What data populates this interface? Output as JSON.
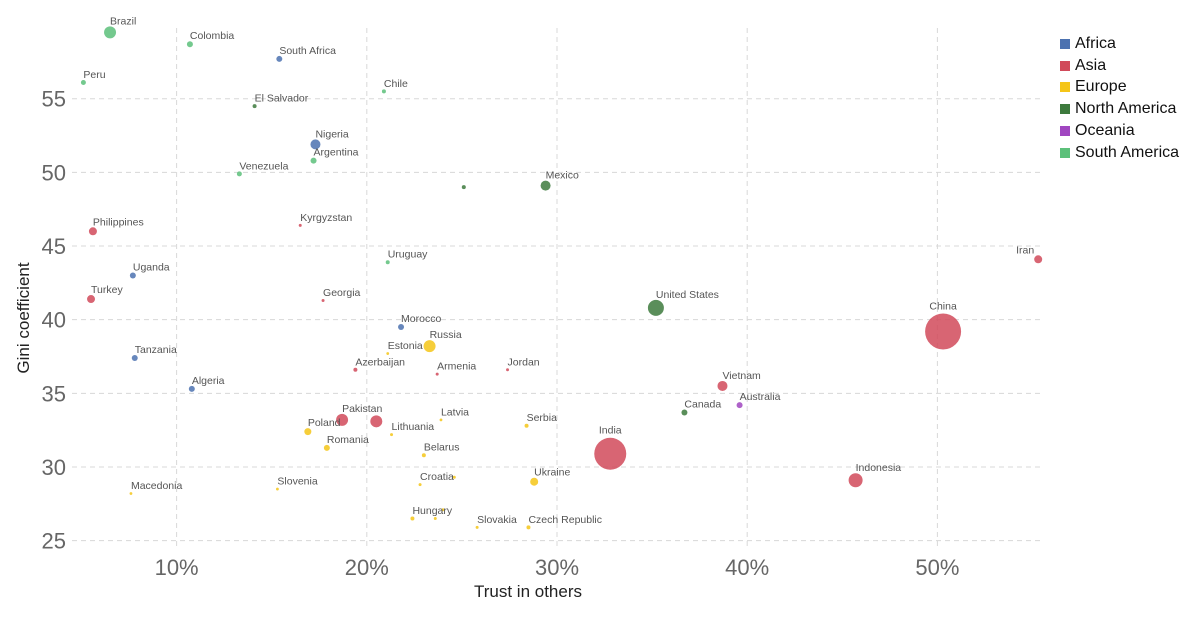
{
  "chart_data": {
    "type": "scatter",
    "title": "",
    "xlabel": "Trust in others",
    "ylabel": "Gini coefficient",
    "xlim": [
      4.5,
      55.5
    ],
    "ylim": [
      24.5,
      59.8
    ],
    "x_ticks": [
      10,
      20,
      30,
      40,
      50
    ],
    "x_tick_labels": [
      "10%",
      "20%",
      "30%",
      "40%",
      "50%"
    ],
    "y_ticks": [
      25,
      30,
      35,
      40,
      45,
      50,
      55
    ],
    "y_tick_labels": [
      "25",
      "30",
      "35",
      "40",
      "45",
      "50",
      "55"
    ],
    "grid": true,
    "legend_position": "top-right",
    "series": [
      {
        "name": "Africa",
        "color": "#4c72b0"
      },
      {
        "name": "Asia",
        "color": "#d14a5a"
      },
      {
        "name": "Europe",
        "color": "#f5c518"
      },
      {
        "name": "North America",
        "color": "#3d7a3d"
      },
      {
        "name": "Oceania",
        "color": "#a046c0"
      },
      {
        "name": "South America",
        "color": "#5cc07a"
      }
    ],
    "points": [
      {
        "label": "Brazil",
        "region": "South America",
        "x": 6.5,
        "y": 59.5,
        "size": 6
      },
      {
        "label": "Colombia",
        "region": "South America",
        "x": 10.7,
        "y": 58.7,
        "size": 3
      },
      {
        "label": "South Africa",
        "region": "Africa",
        "x": 15.4,
        "y": 57.7,
        "size": 3
      },
      {
        "label": "Peru",
        "region": "South America",
        "x": 5.1,
        "y": 56.1,
        "size": 2.5
      },
      {
        "label": "Chile",
        "region": "South America",
        "x": 20.9,
        "y": 55.5,
        "size": 2
      },
      {
        "label": "El Salvador",
        "region": "North America",
        "x": 14.1,
        "y": 54.5,
        "size": 2
      },
      {
        "label": "Nigeria",
        "region": "Africa",
        "x": 17.3,
        "y": 51.9,
        "size": 5
      },
      {
        "label": "Argentina",
        "region": "South America",
        "x": 17.2,
        "y": 50.8,
        "size": 3
      },
      {
        "label": "Venezuela",
        "region": "South America",
        "x": 13.3,
        "y": 49.9,
        "size": 2.5
      },
      {
        "label": "",
        "region": "North America",
        "x": 25.1,
        "y": 49.0,
        "size": 2
      },
      {
        "label": "Mexico",
        "region": "North America",
        "x": 29.4,
        "y": 49.1,
        "size": 5
      },
      {
        "label": "Kyrgyzstan",
        "region": "Asia",
        "x": 16.5,
        "y": 46.4,
        "size": 1.5
      },
      {
        "label": "Philippines",
        "region": "Asia",
        "x": 5.6,
        "y": 46.0,
        "size": 4
      },
      {
        "label": "Iran",
        "region": "Asia",
        "x": 55.3,
        "y": 44.1,
        "size": 4
      },
      {
        "label": "Uruguay",
        "region": "South America",
        "x": 21.1,
        "y": 43.9,
        "size": 2
      },
      {
        "label": "Uganda",
        "region": "Africa",
        "x": 7.7,
        "y": 43.0,
        "size": 3
      },
      {
        "label": "Turkey",
        "region": "Asia",
        "x": 5.5,
        "y": 41.4,
        "size": 4
      },
      {
        "label": "Georgia",
        "region": "Asia",
        "x": 17.7,
        "y": 41.3,
        "size": 1.5
      },
      {
        "label": "United States",
        "region": "North America",
        "x": 35.2,
        "y": 40.8,
        "size": 8
      },
      {
        "label": "China",
        "region": "Asia",
        "x": 50.3,
        "y": 39.2,
        "size": 18
      },
      {
        "label": "Morocco",
        "region": "Africa",
        "x": 21.8,
        "y": 39.5,
        "size": 3
      },
      {
        "label": "Russia",
        "region": "Europe",
        "x": 23.3,
        "y": 38.2,
        "size": 6
      },
      {
        "label": "Estonia",
        "region": "Europe",
        "x": 21.1,
        "y": 37.7,
        "size": 1.2
      },
      {
        "label": "Tanzania",
        "region": "Africa",
        "x": 7.8,
        "y": 37.4,
        "size": 3
      },
      {
        "label": "Azerbaijan",
        "region": "Asia",
        "x": 19.4,
        "y": 36.6,
        "size": 2
      },
      {
        "label": "Armenia",
        "region": "Asia",
        "x": 23.7,
        "y": 36.3,
        "size": 1.5
      },
      {
        "label": "Jordan",
        "region": "Asia",
        "x": 27.4,
        "y": 36.6,
        "size": 1.5
      },
      {
        "label": "Vietnam",
        "region": "Asia",
        "x": 38.7,
        "y": 35.5,
        "size": 5
      },
      {
        "label": "Algeria",
        "region": "Africa",
        "x": 10.8,
        "y": 35.3,
        "size": 3
      },
      {
        "label": "Australia",
        "region": "Oceania",
        "x": 39.6,
        "y": 34.2,
        "size": 3
      },
      {
        "label": "Canada",
        "region": "North America",
        "x": 36.7,
        "y": 33.7,
        "size": 3
      },
      {
        "label": "Latvia",
        "region": "Europe",
        "x": 23.9,
        "y": 33.2,
        "size": 1.2
      },
      {
        "label": "Pakistan",
        "region": "Asia",
        "x": 18.7,
        "y": 33.2,
        "size": 6
      },
      {
        "label": "",
        "region": "Asia",
        "x": 20.5,
        "y": 33.1,
        "size": 6
      },
      {
        "label": "Serbia",
        "region": "Europe",
        "x": 28.4,
        "y": 32.8,
        "size": 2
      },
      {
        "label": "Poland",
        "region": "Europe",
        "x": 16.9,
        "y": 32.4,
        "size": 3.5
      },
      {
        "label": "Lithuania",
        "region": "Europe",
        "x": 21.3,
        "y": 32.2,
        "size": 1.5
      },
      {
        "label": "India",
        "region": "Asia",
        "x": 32.8,
        "y": 30.9,
        "size": 16
      },
      {
        "label": "Romania",
        "region": "Europe",
        "x": 17.9,
        "y": 31.3,
        "size": 3
      },
      {
        "label": "Belarus",
        "region": "Europe",
        "x": 23.0,
        "y": 30.8,
        "size": 2
      },
      {
        "label": "Indonesia",
        "region": "Asia",
        "x": 45.7,
        "y": 29.1,
        "size": 7
      },
      {
        "label": "",
        "region": "Europe",
        "x": 24.6,
        "y": 29.3,
        "size": 1.5
      },
      {
        "label": "Ukraine",
        "region": "Europe",
        "x": 28.8,
        "y": 29.0,
        "size": 4
      },
      {
        "label": "Croatia",
        "region": "Europe",
        "x": 22.8,
        "y": 28.8,
        "size": 1.5
      },
      {
        "label": "Slovenia",
        "region": "Europe",
        "x": 15.3,
        "y": 28.5,
        "size": 1.2
      },
      {
        "label": "Macedonia",
        "region": "Europe",
        "x": 7.6,
        "y": 28.2,
        "size": 1.2
      },
      {
        "label": "",
        "region": "Europe",
        "x": 24.0,
        "y": 27.1,
        "size": 1.5
      },
      {
        "label": "Hungary",
        "region": "Europe",
        "x": 22.4,
        "y": 26.5,
        "size": 2
      },
      {
        "label": "",
        "region": "Europe",
        "x": 23.6,
        "y": 26.5,
        "size": 1.5
      },
      {
        "label": "Slovakia",
        "region": "Europe",
        "x": 25.8,
        "y": 25.9,
        "size": 1.5
      },
      {
        "label": "Czech Republic",
        "region": "Europe",
        "x": 28.5,
        "y": 25.9,
        "size": 2
      }
    ]
  }
}
